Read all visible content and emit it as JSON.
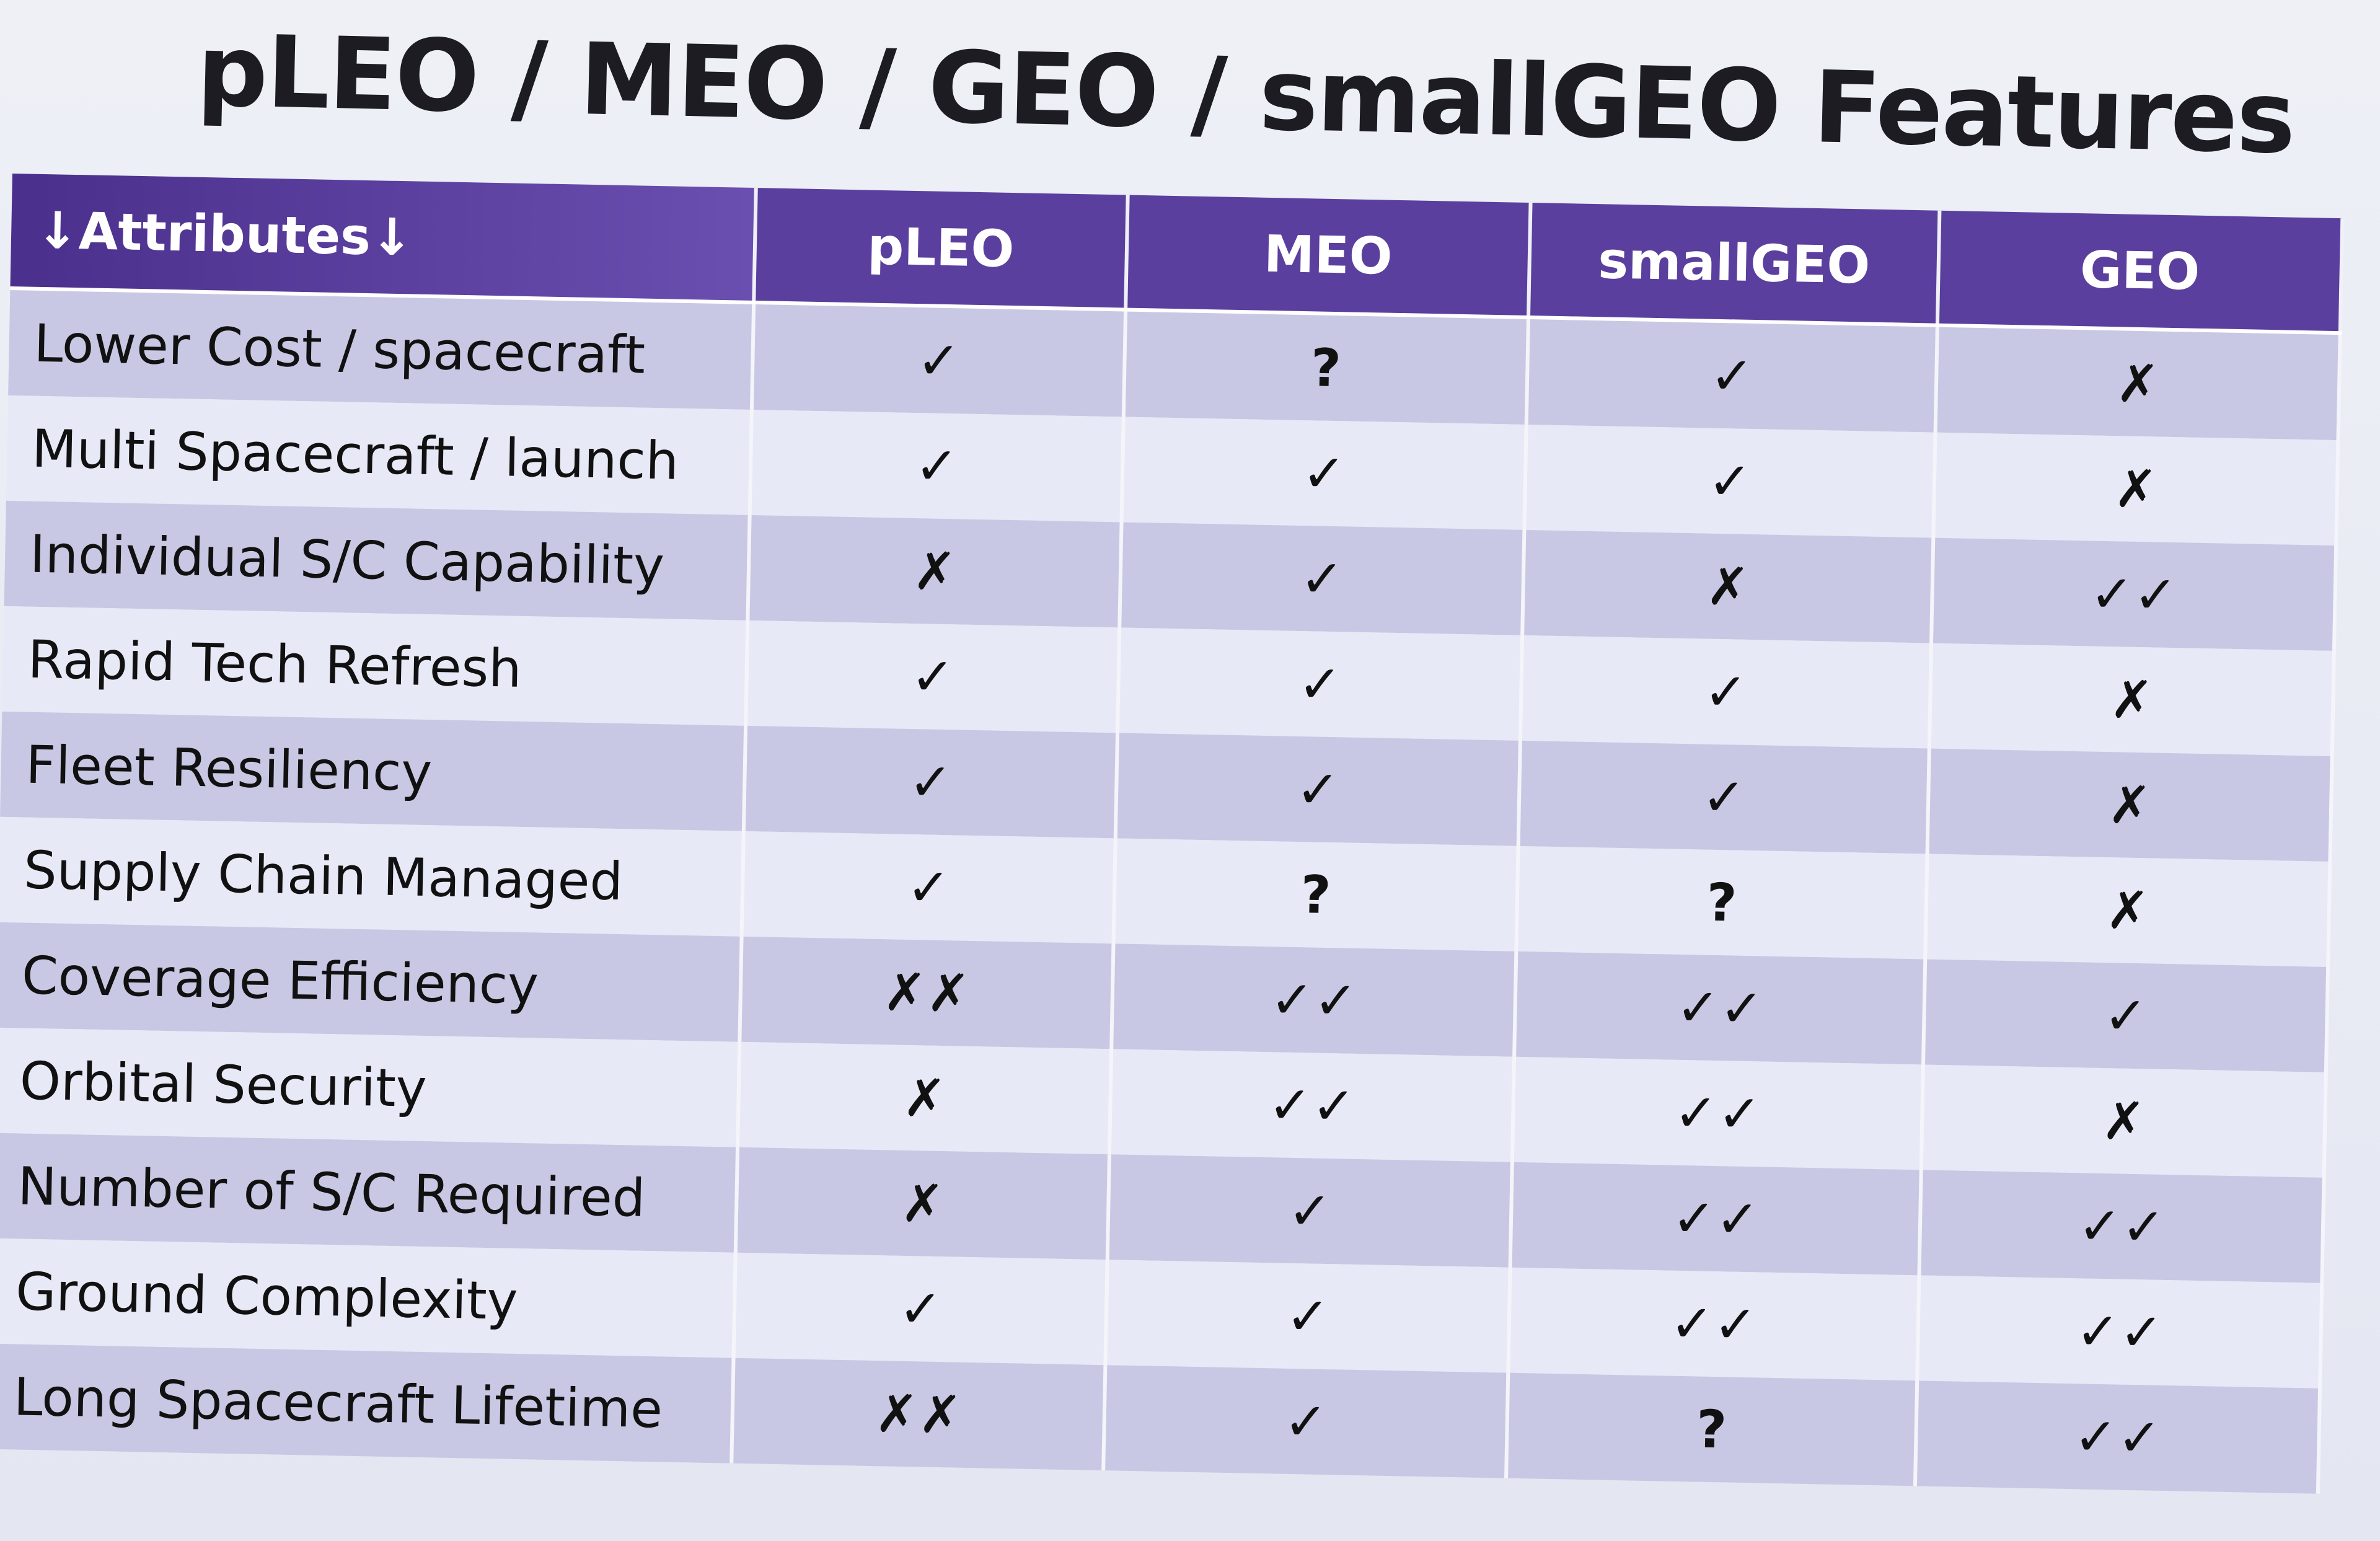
{
  "title": "pLEO / MEO / GEO / smallGEO Features",
  "table": {
    "headers": [
      "↓Attributes↓",
      "pLEO",
      "MEO",
      "smallGEO",
      "GEO"
    ],
    "rows": [
      {
        "attribute": "Lower Cost / spacecraft",
        "values": [
          "✓",
          "?",
          "✓",
          "✗"
        ]
      },
      {
        "attribute": "Multi Spacecraft / launch",
        "values": [
          "✓",
          "✓",
          "✓",
          "✗"
        ]
      },
      {
        "attribute": "Individual S/C Capability",
        "values": [
          "✗",
          "✓",
          "✗",
          "✓✓"
        ]
      },
      {
        "attribute": "Rapid Tech Refresh",
        "values": [
          "✓",
          "✓",
          "✓",
          "✗"
        ]
      },
      {
        "attribute": "Fleet Resiliency",
        "values": [
          "✓",
          "✓",
          "✓",
          "✗"
        ]
      },
      {
        "attribute": "Supply Chain Managed",
        "values": [
          "✓",
          "?",
          "?",
          "✗"
        ]
      },
      {
        "attribute": "Coverage Efficiency",
        "values": [
          "✗✗",
          "✓✓",
          "✓✓",
          "✓"
        ]
      },
      {
        "attribute": "Orbital Security",
        "values": [
          "✗",
          "✓✓",
          "✓✓",
          "✗"
        ]
      },
      {
        "attribute": "Number of S/C Required",
        "values": [
          "✗",
          "✓",
          "✓✓",
          "✓✓"
        ]
      },
      {
        "attribute": "Ground Complexity",
        "values": [
          "✓",
          "✓",
          "✓✓",
          "✓✓"
        ]
      },
      {
        "attribute": "Long Spacecraft Lifetime",
        "values": [
          "✗✗",
          "✓",
          "?",
          "✓✓"
        ]
      }
    ]
  },
  "colors": {
    "header": "#5b3f9e",
    "check": "#1e5e50",
    "cross": "#d0406a"
  }
}
